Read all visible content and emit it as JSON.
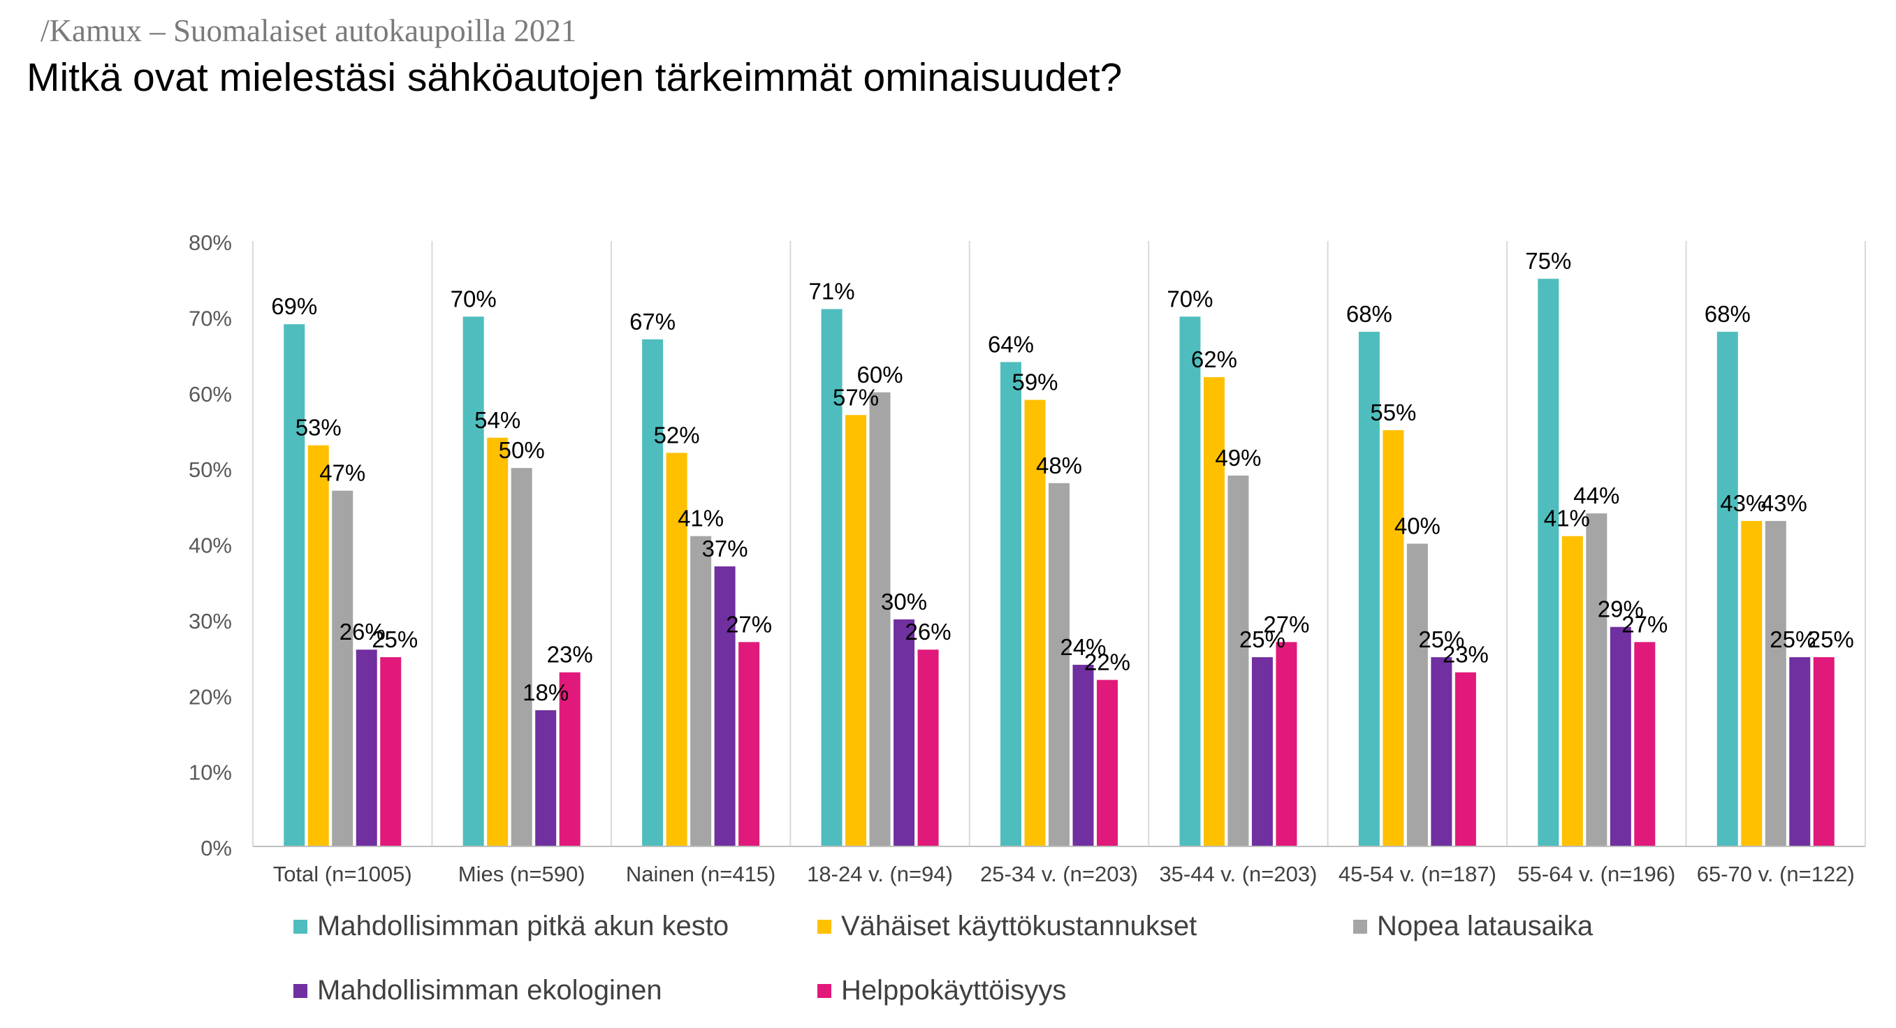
{
  "header": {
    "brand": "/Kamux – Suomalaiset autokaupoilla 2021",
    "title": "Mitkä ovat mielestäsi sähköautojen tärkeimmät ominaisuudet?"
  },
  "colors": {
    "battery": "#4fbdbd",
    "cost": "#ffc000",
    "charging": "#a5a5a5",
    "ecological": "#7030a0",
    "ease": "#e0197a"
  },
  "chart_data": {
    "type": "bar",
    "title": "Mitkä ovat mielestäsi sähköautojen tärkeimmät ominaisuudet?",
    "categories": [
      "Total (n=1005)",
      "Mies (n=590)",
      "Nainen (n=415)",
      "18-24 v. (n=94)",
      "25-34 v. (n=203)",
      "35-44 v. (n=203)",
      "45-54 v. (n=187)",
      "55-64 v. (n=196)",
      "65-70 v. (n=122)"
    ],
    "series": [
      {
        "name": "Mahdollisimman pitkä akun kesto",
        "color": "#4fbdbd",
        "values": [
          69,
          70,
          67,
          71,
          64,
          70,
          68,
          75,
          68
        ]
      },
      {
        "name": "Vähäiset käyttökustannukset",
        "color": "#ffc000",
        "values": [
          53,
          54,
          52,
          57,
          59,
          62,
          55,
          41,
          43
        ]
      },
      {
        "name": "Nopea latausaika",
        "color": "#a5a5a5",
        "values": [
          47,
          50,
          41,
          60,
          48,
          49,
          40,
          44,
          43
        ]
      },
      {
        "name": "Mahdollisimman ekologinen",
        "color": "#7030a0",
        "values": [
          26,
          18,
          37,
          30,
          24,
          25,
          25,
          29,
          25
        ]
      },
      {
        "name": "Helppokäyttöisyys",
        "color": "#e0197a",
        "values": [
          25,
          23,
          27,
          26,
          22,
          27,
          23,
          27,
          25
        ]
      }
    ],
    "yticks": [
      "0%",
      "10%",
      "20%",
      "30%",
      "40%",
      "50%",
      "60%",
      "70%",
      "80%"
    ],
    "ylim": [
      0,
      80
    ],
    "grid": "vertical separators between categories",
    "legend_position": "bottom"
  }
}
